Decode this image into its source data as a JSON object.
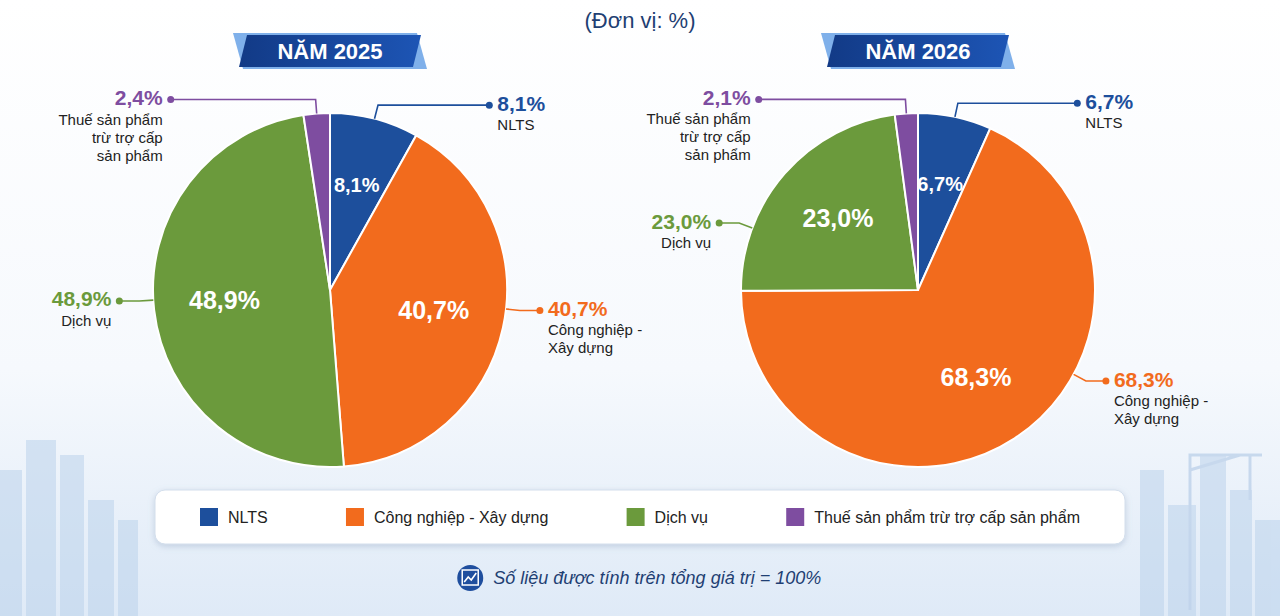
{
  "header": {
    "unit": "(Đơn vị: %)"
  },
  "chart_data": [
    {
      "type": "pie",
      "title": "NĂM 2025",
      "categories": [
        "NLTS",
        "Công nghiệp - Xây dựng",
        "Dịch vụ",
        "Thuế sản phẩm trừ trợ cấp sản phẩm"
      ],
      "values": [
        8.1,
        40.7,
        48.9,
        2.4
      ],
      "value_labels": [
        "8,1%",
        "40,7%",
        "48,9%",
        "2,4%"
      ],
      "colors": [
        "#1d4f9c",
        "#f26b1d",
        "#6b9a3c",
        "#7e4da0"
      ],
      "data_labels": true,
      "legend": "bottom"
    },
    {
      "type": "pie",
      "title": "NĂM 2026",
      "categories": [
        "NLTS",
        "Công nghiệp - Xây dựng",
        "Dịch vụ",
        "Thuế sản phẩm trừ trợ cấp sản phẩm"
      ],
      "values": [
        6.7,
        68.3,
        23.0,
        2.1
      ],
      "value_labels": [
        "6,7%",
        "68,3%",
        "23,0%",
        "2,1%"
      ],
      "colors": [
        "#1d4f9c",
        "#f26b1d",
        "#6b9a3c",
        "#7e4da0"
      ],
      "data_labels": true
    }
  ],
  "footer": {
    "note": "Số liệu được tính trên tổng giá trị = 100%"
  }
}
